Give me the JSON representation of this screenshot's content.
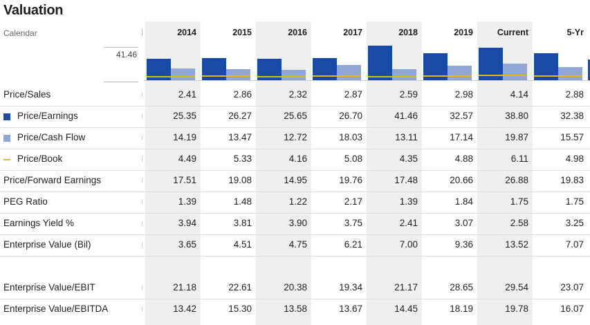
{
  "page": {
    "title": "Valuation"
  },
  "header": {
    "calendar_label": "Calendar",
    "chart_max_label": "41.46",
    "columns": [
      "2014",
      "2015",
      "2016",
      "2017",
      "2018",
      "2019",
      "Current",
      "5-Yr"
    ]
  },
  "colors": {
    "pe": "#1a4aa8",
    "pcf": "#8fa8d8",
    "pb": "#e6b800",
    "shade": "#efefef"
  },
  "chart_data": {
    "type": "bar",
    "categories": [
      "2014",
      "2015",
      "2016",
      "2017",
      "2018",
      "2019",
      "Current",
      "5-Yr"
    ],
    "series": [
      {
        "name": "Price/Earnings",
        "values": [
          25.35,
          26.27,
          25.65,
          26.7,
          41.46,
          32.57,
          38.8,
          32.38
        ]
      },
      {
        "name": "Price/Cash Flow",
        "values": [
          14.19,
          13.47,
          12.72,
          18.03,
          13.11,
          17.14,
          19.87,
          15.57
        ]
      },
      {
        "name": "Price/Book",
        "values": [
          4.49,
          5.33,
          4.16,
          5.08,
          4.35,
          4.88,
          6.11,
          4.98
        ]
      }
    ],
    "ylim": [
      0,
      41.46
    ]
  },
  "rows": [
    {
      "label": "Price/Sales",
      "values": [
        "2.41",
        "2.86",
        "2.32",
        "2.87",
        "2.59",
        "2.98",
        "4.14",
        "2.88"
      ]
    },
    {
      "label": "Price/Earnings",
      "legend": "pe",
      "values": [
        "25.35",
        "26.27",
        "25.65",
        "26.70",
        "41.46",
        "32.57",
        "38.80",
        "32.38"
      ]
    },
    {
      "label": "Price/Cash Flow",
      "legend": "pcf",
      "values": [
        "14.19",
        "13.47",
        "12.72",
        "18.03",
        "13.11",
        "17.14",
        "19.87",
        "15.57"
      ]
    },
    {
      "label": "Price/Book",
      "legend": "pb",
      "values": [
        "4.49",
        "5.33",
        "4.16",
        "5.08",
        "4.35",
        "4.88",
        "6.11",
        "4.98"
      ]
    },
    {
      "label": "Price/Forward Earnings",
      "values": [
        "17.51",
        "19.08",
        "14.95",
        "19.76",
        "17.48",
        "20.66",
        "26.88",
        "19.83"
      ]
    },
    {
      "label": "PEG Ratio",
      "values": [
        "1.39",
        "1.48",
        "1.22",
        "2.17",
        "1.39",
        "1.84",
        "1.75",
        "1.75"
      ]
    },
    {
      "label": "Earnings Yield %",
      "values": [
        "3.94",
        "3.81",
        "3.90",
        "3.75",
        "2.41",
        "3.07",
        "2.58",
        "3.25"
      ]
    },
    {
      "label": "Enterprise Value (Bil)",
      "values": [
        "3.65",
        "4.51",
        "4.75",
        "6.21",
        "7.00",
        "9.36",
        "13.52",
        "7.07"
      ]
    },
    {
      "label": "Enterprise Value/EBIT",
      "values": [
        "21.18",
        "22.61",
        "20.38",
        "19.34",
        "21.17",
        "28.65",
        "29.54",
        "23.07"
      ]
    },
    {
      "label": "Enterprise Value/EBITDA",
      "values": [
        "13.42",
        "15.30",
        "13.58",
        "13.67",
        "14.45",
        "18.19",
        "19.78",
        "16.07"
      ]
    }
  ]
}
